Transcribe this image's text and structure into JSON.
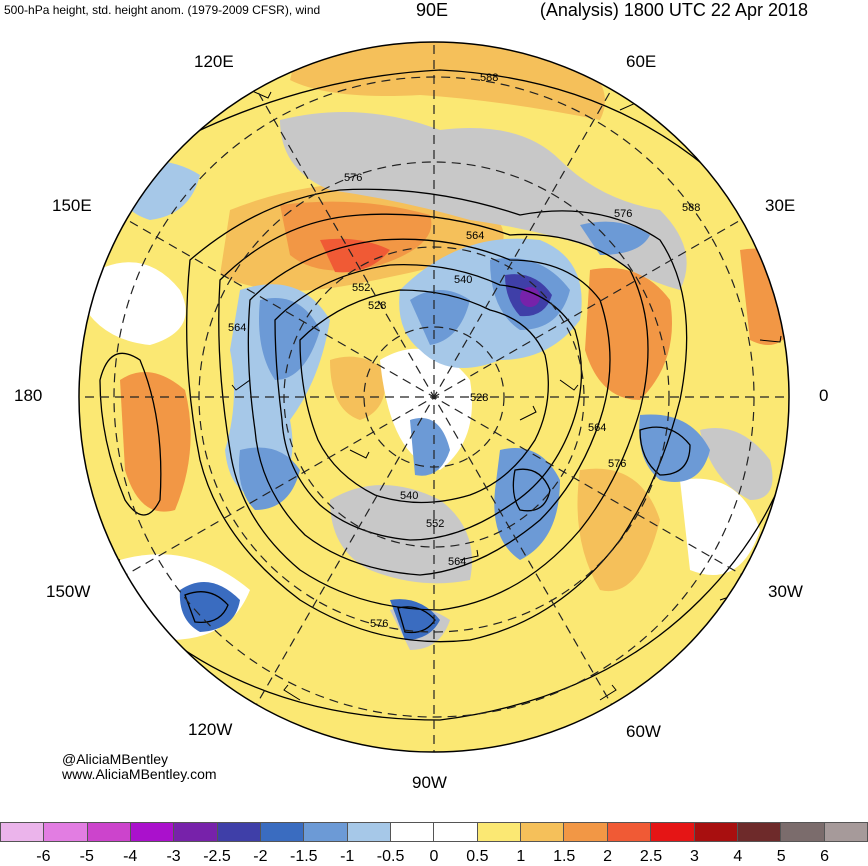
{
  "header": {
    "title_left": "500-hPa height, std. height anom. (1979-2009 CFSR), wind",
    "title_right": "(Analysis) 1800 UTC 22 Apr 2018"
  },
  "longitude_labels": {
    "n": "90E",
    "ne": "60E",
    "ene": "30E",
    "e": "0",
    "ese": "30W",
    "se": "60W",
    "s": "90W",
    "sw": "120W",
    "wsw": "150W",
    "w": "180",
    "wnw": "150E",
    "nw": "120E"
  },
  "contour_labels": [
    "588",
    "576",
    "564",
    "552",
    "540",
    "528",
    "528",
    "540",
    "552",
    "564",
    "576",
    "564",
    "576",
    "588",
    "564",
    "552",
    "576"
  ],
  "credits": {
    "twitter": "@AliciaMBentley",
    "website": "www.AliciaMBentley.com"
  },
  "colorbar": {
    "colors": [
      "#ebb4eb",
      "#e27de2",
      "#cc44cc",
      "#aa11cc",
      "#7722aa",
      "#3f3fa8",
      "#3a6cc0",
      "#6c9ad6",
      "#a6c8e8",
      "#ffffff",
      "#ffffff",
      "#fbe873",
      "#f5c05a",
      "#f29745",
      "#f05a35",
      "#e51515",
      "#a80f0f",
      "#6e2a2a",
      "#7b6c6c",
      "#a69a9a"
    ],
    "labels": [
      "-6",
      "-5",
      "-4",
      "-3",
      "-2.5",
      "-2",
      "-1.5",
      "-1",
      "-0.5",
      "0",
      "0.5",
      "1",
      "1.5",
      "2",
      "2.5",
      "3",
      "4",
      "5",
      "6"
    ]
  }
}
